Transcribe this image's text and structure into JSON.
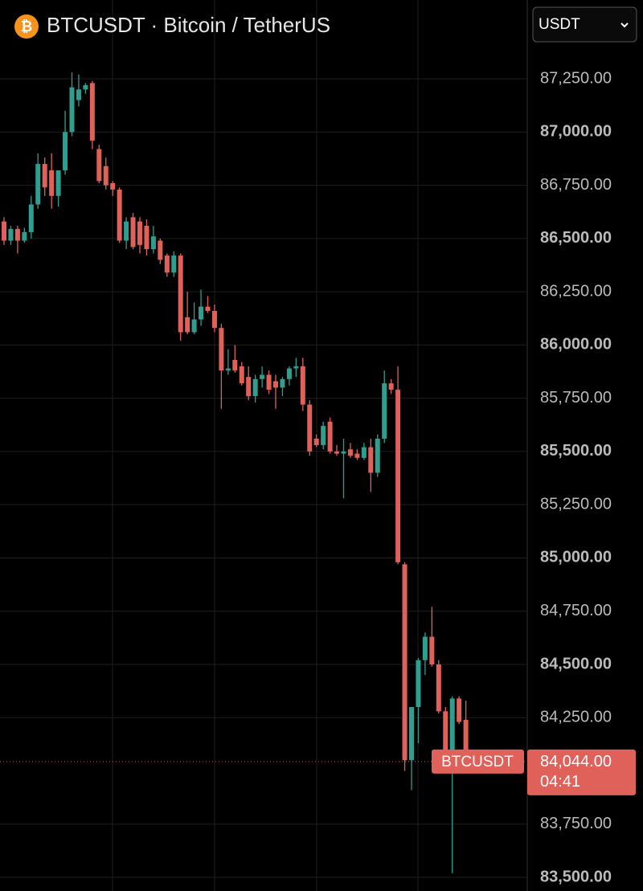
{
  "chart_data": {
    "type": "candlestick",
    "title": "BTCUSDT · Bitcoin / TetherUS",
    "currency": "USDT",
    "up_color": "#2e9e8f",
    "down_color": "#e0605a",
    "ylim": [
      83436,
      87620
    ],
    "yticks": [
      {
        "value": 87250,
        "label": "87,250.00"
      },
      {
        "value": 87000,
        "label": "87,000.00"
      },
      {
        "value": 86750,
        "label": "86,750.00"
      },
      {
        "value": 86500,
        "label": "86,500.00"
      },
      {
        "value": 86250,
        "label": "86,250.00"
      },
      {
        "value": 86000,
        "label": "86,000.00"
      },
      {
        "value": 85750,
        "label": "85,750.00"
      },
      {
        "value": 85500,
        "label": "85,500.00"
      },
      {
        "value": 85250,
        "label": "85,250.00"
      },
      {
        "value": 85000,
        "label": "85,000.00"
      },
      {
        "value": 84750,
        "label": "84,750.00"
      },
      {
        "value": 84500,
        "label": "84,500.00"
      },
      {
        "value": 84250,
        "label": "84,250.00"
      },
      {
        "value": 83750,
        "label": "83,750.00"
      },
      {
        "value": 83500,
        "label": "83,500.00"
      }
    ],
    "grid": true,
    "last_price": {
      "value": 84044,
      "label": "84,044.00"
    },
    "price_tag": "BTCUSDT",
    "countdown": "04:41",
    "open": [
      86580,
      86490,
      86545,
      86490,
      86530,
      86660,
      86850,
      86820,
      86700,
      86820,
      87000,
      87150,
      87200,
      87230,
      86920,
      86840,
      86760,
      86730,
      86490,
      86600,
      86580,
      86560,
      86450,
      86490,
      86420,
      86340,
      86420,
      86130,
      86060,
      86120,
      86180,
      86160,
      86080,
      85880,
      85930,
      85900,
      85850,
      85760,
      85840,
      85860,
      85830,
      85800,
      85840,
      85890,
      85900,
      85720,
      85560,
      85530,
      85640,
      85500,
      85490,
      85510,
      85490,
      85470,
      85520,
      85400,
      85560,
      85820,
      85790,
      84970,
      84050,
      84300,
      84520,
      84630,
      84500,
      84280,
      84040,
      84340,
      84240
    ],
    "high": [
      86600,
      86560,
      86560,
      86550,
      86700,
      86900,
      86880,
      86900,
      86820,
      87100,
      87280,
      87270,
      87230,
      87240,
      86940,
      86880,
      86770,
      86740,
      86600,
      86620,
      86600,
      86590,
      86560,
      86500,
      86430,
      86440,
      86430,
      86250,
      86200,
      86260,
      86230,
      86190,
      86100,
      85980,
      86000,
      85920,
      85900,
      85860,
      85900,
      85880,
      85860,
      85850,
      85900,
      85940,
      85940,
      85740,
      85580,
      85640,
      85660,
      85530,
      85560,
      85540,
      85510,
      85540,
      85560,
      85580,
      85880,
      85840,
      85900,
      84980,
      84300,
      84530,
      84650,
      84770,
      84520,
      84300,
      84350,
      84350,
      84330
    ],
    "low": [
      86470,
      86470,
      86430,
      86480,
      86500,
      86640,
      86700,
      86640,
      86650,
      86800,
      86980,
      87120,
      87180,
      86920,
      86760,
      86730,
      86700,
      86480,
      86450,
      86450,
      86430,
      86420,
      86430,
      86380,
      86320,
      86320,
      86020,
      86050,
      86050,
      86090,
      86150,
      86060,
      85700,
      85860,
      85870,
      85810,
      85740,
      85730,
      85800,
      85770,
      85700,
      85760,
      85810,
      85850,
      85690,
      85480,
      85520,
      85510,
      85490,
      85480,
      85280,
      85470,
      85460,
      85460,
      85310,
      85380,
      85540,
      85770,
      84970,
      84000,
      83910,
      84130,
      84450,
      84490,
      84270,
      84030,
      83520,
      84220,
      84040
    ],
    "close": [
      86490,
      86545,
      86490,
      86530,
      86660,
      86850,
      86740,
      86700,
      86820,
      87000,
      87210,
      87200,
      87220,
      86960,
      86770,
      86750,
      86730,
      86490,
      86580,
      86460,
      86470,
      86450,
      86510,
      86400,
      86340,
      86420,
      86060,
      86060,
      86120,
      86180,
      86160,
      86080,
      85880,
      85890,
      85880,
      85820,
      85760,
      85840,
      85860,
      85790,
      85800,
      85840,
      85890,
      85900,
      85720,
      85500,
      85530,
      85620,
      85500,
      85490,
      85500,
      85480,
      85470,
      85520,
      85400,
      85560,
      85820,
      85790,
      84980,
      84050,
      84300,
      84520,
      84630,
      84500,
      84280,
      84040,
      84340,
      84230,
      84044
    ]
  }
}
